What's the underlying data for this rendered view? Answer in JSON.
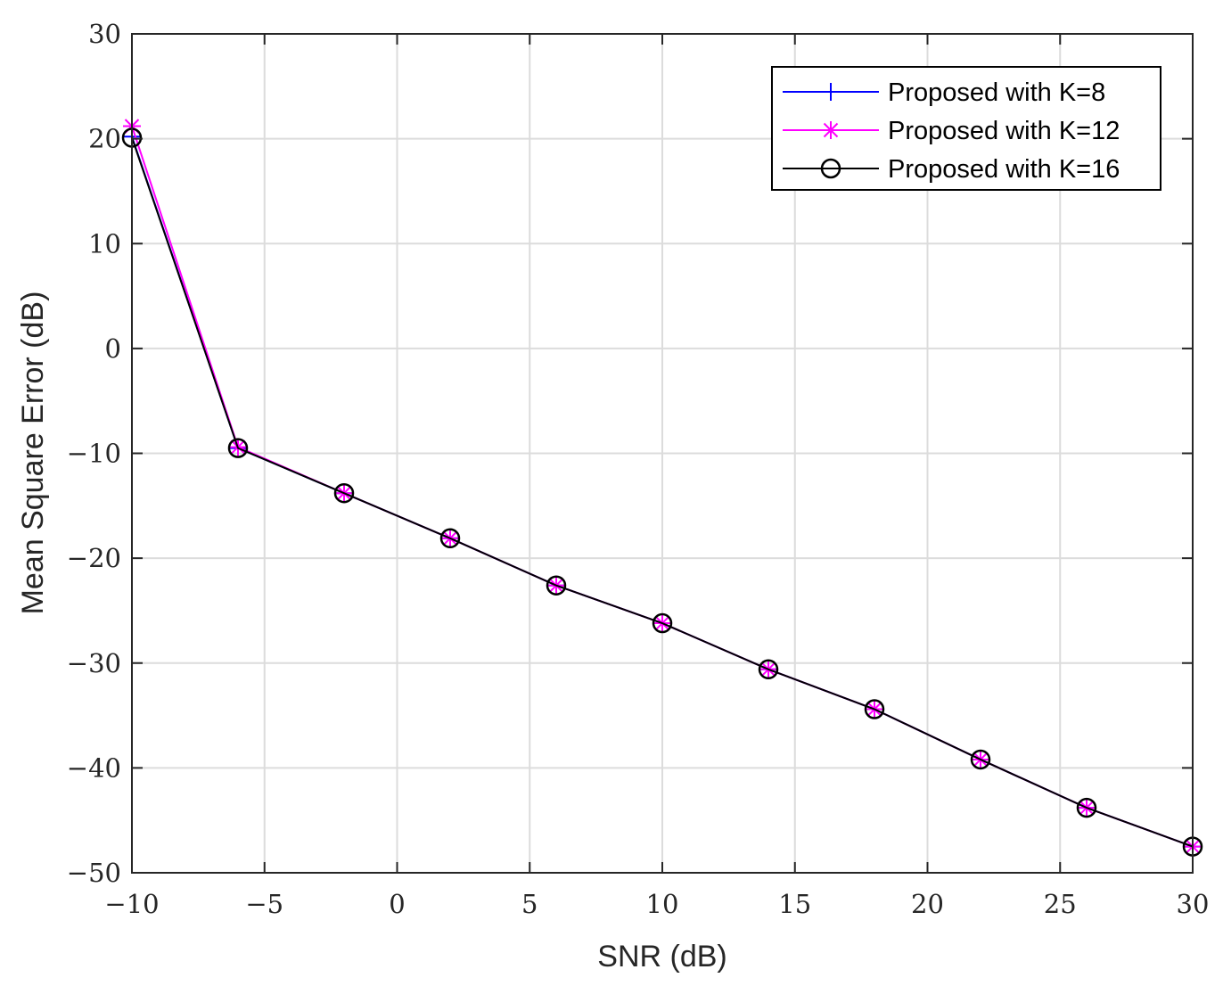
{
  "chart_data": {
    "type": "line",
    "title": "",
    "xlabel": "SNR (dB)",
    "ylabel": "Mean Square Error (dB)",
    "xlim": [
      -10,
      30
    ],
    "ylim": [
      -50,
      30
    ],
    "xticks": [
      -10,
      -5,
      0,
      5,
      10,
      15,
      20,
      25,
      30
    ],
    "xtick_labels": [
      "−10",
      "−5",
      "0",
      "5",
      "10",
      "15",
      "20",
      "25",
      "30"
    ],
    "yticks": [
      -50,
      -40,
      -30,
      -20,
      -10,
      0,
      10,
      20,
      30
    ],
    "ytick_labels": [
      "−50",
      "−40",
      "−30",
      "−20",
      "−10",
      "0",
      "10",
      "20",
      "30"
    ],
    "grid": true,
    "legend_position": "top-right",
    "x": [
      -10,
      -6,
      -2,
      2,
      6,
      10,
      14,
      18,
      22,
      26,
      30
    ],
    "series": [
      {
        "name": "Proposed with K=8",
        "color": "#0000ff",
        "marker": "plus",
        "values": [
          20.2,
          -9.5,
          -13.8,
          -18.1,
          -22.6,
          -26.2,
          -30.6,
          -34.4,
          -39.2,
          -43.8,
          -47.5
        ]
      },
      {
        "name": "Proposed with K=12",
        "color": "#ff00ff",
        "marker": "asterisk",
        "values": [
          21.2,
          -9.4,
          -13.8,
          -18.1,
          -22.6,
          -26.2,
          -30.6,
          -34.4,
          -39.2,
          -43.8,
          -47.5
        ]
      },
      {
        "name": "Proposed with K=16",
        "color": "#000000",
        "marker": "circle",
        "values": [
          20.1,
          -9.5,
          -13.8,
          -18.1,
          -22.6,
          -26.2,
          -30.6,
          -34.4,
          -39.2,
          -43.8,
          -47.5
        ]
      }
    ]
  }
}
